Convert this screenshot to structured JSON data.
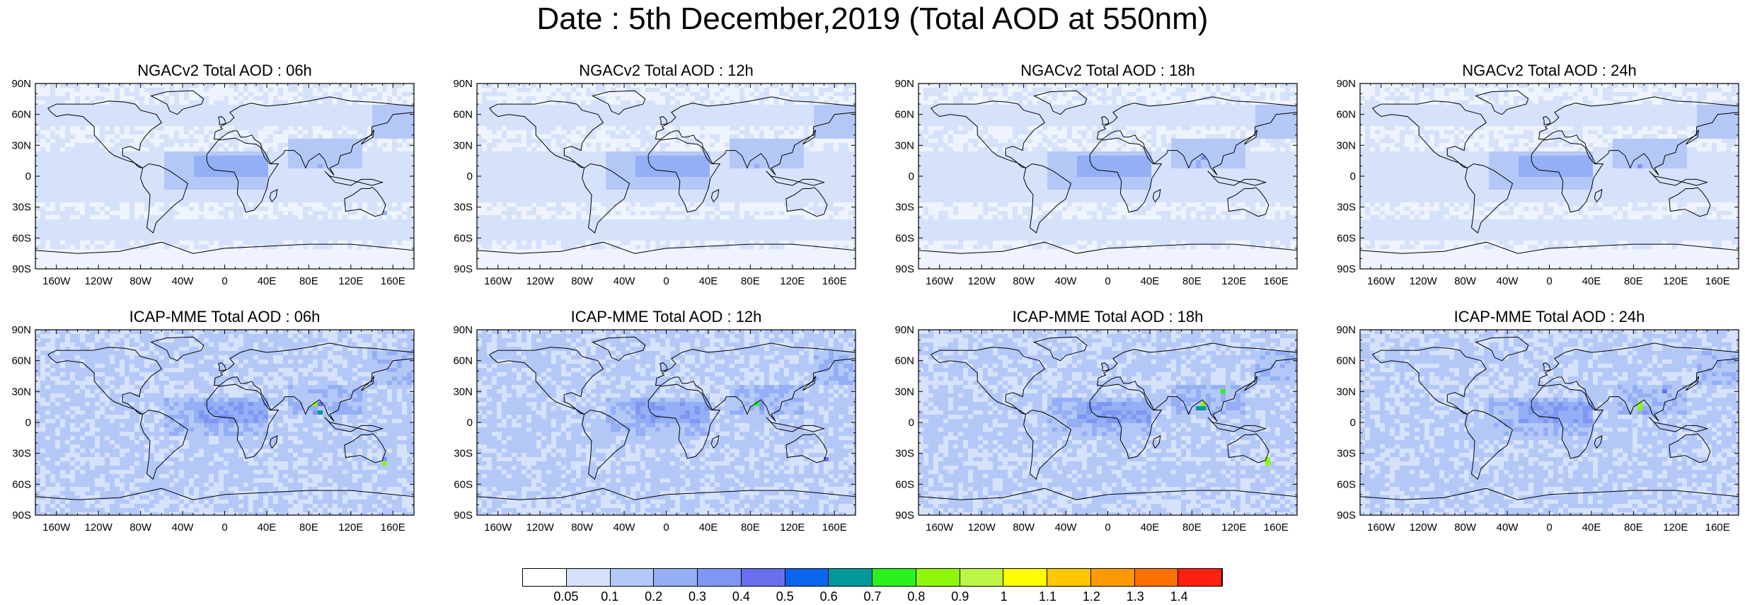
{
  "title": "Date : 5th December,2019 (Total AOD at 550nm)",
  "lat_ticks": [
    "90N",
    "60N",
    "30N",
    "0",
    "30S",
    "60S",
    "90S"
  ],
  "lon_ticks": [
    "160W",
    "120W",
    "80W",
    "40W",
    "0",
    "40E",
    "80E",
    "120E",
    "160E"
  ],
  "panels": [
    {
      "title": "NGACv2 Total AOD : 06h",
      "model": "NGACv2"
    },
    {
      "title": "NGACv2 Total AOD : 12h",
      "model": "NGACv2"
    },
    {
      "title": "NGACv2 Total AOD : 18h",
      "model": "NGACv2"
    },
    {
      "title": "NGACv2 Total AOD : 24h",
      "model": "NGACv2"
    },
    {
      "title": "ICAP-MME Total AOD : 06h",
      "model": "ICAP-MME"
    },
    {
      "title": "ICAP-MME Total AOD : 12h",
      "model": "ICAP-MME"
    },
    {
      "title": "ICAP-MME Total AOD : 18h",
      "model": "ICAP-MME"
    },
    {
      "title": "ICAP-MME Total AOD : 24h",
      "model": "ICAP-MME"
    }
  ],
  "colorbar": {
    "labels": [
      "0.05",
      "0.1",
      "0.2",
      "0.3",
      "0.4",
      "0.5",
      "0.6",
      "0.7",
      "0.8",
      "0.9",
      "1",
      "1.1",
      "1.2",
      "1.3",
      "1.4"
    ],
    "colors": [
      "#ffffff",
      "#d6e2fb",
      "#b4c8f8",
      "#94aff5",
      "#7f96f2",
      "#6a6ff0",
      "#0a64ee",
      "#00999b",
      "#2af21e",
      "#8ef70a",
      "#bcf545",
      "#ffff00",
      "#ffc800",
      "#ff9b00",
      "#ff7000",
      "#ff2010"
    ]
  }
}
